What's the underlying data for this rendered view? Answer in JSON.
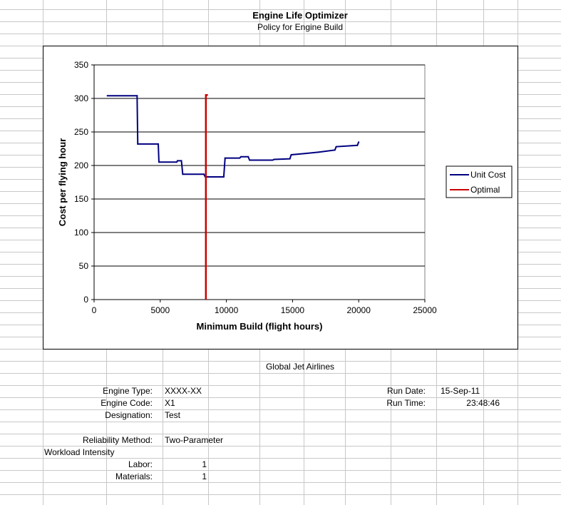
{
  "sheet": {
    "title": "Engine Life Optimizer",
    "subtitle": "Policy for Engine Build",
    "airline": "Global Jet Airlines",
    "fields": {
      "engine_type_label": "Engine Type:",
      "engine_type": "XXXX-XX",
      "engine_code_label": "Engine Code:",
      "engine_code": "X1",
      "designation_label": "Designation:",
      "designation": "Test",
      "reliability_label": "Reliability Method:",
      "reliability": "Two-Parameter",
      "workload_label": "Workload Intensity",
      "labor_label": "Labor:",
      "labor": "1",
      "materials_label": "Materials:",
      "materials": "1",
      "run_date_label": "Run Date:",
      "run_date": "15-Sep-11",
      "run_time_label": "Run Time:",
      "run_time": "23:48:46"
    }
  },
  "chart_data": {
    "type": "line",
    "title": "",
    "xlabel": "Minimum Build (flight hours)",
    "ylabel": "Cost per flying hour",
    "xlim": [
      0,
      25000
    ],
    "ylim": [
      0,
      350
    ],
    "xticks": [
      0,
      5000,
      10000,
      15000,
      20000,
      25000
    ],
    "yticks": [
      0,
      50,
      100,
      150,
      200,
      250,
      300,
      350
    ],
    "grid": "horizontal",
    "legend_position": "right",
    "series": [
      {
        "name": "Unit Cost",
        "color": "#000080",
        "x": [
          1000,
          3250,
          3300,
          4850,
          4900,
          6250,
          6300,
          6600,
          6700,
          8300,
          8400,
          9800,
          9900,
          11000,
          11100,
          11650,
          11750,
          13500,
          13600,
          14800,
          14900,
          16000,
          17000,
          18200,
          18300,
          19900,
          20000
        ],
        "y": [
          304,
          304,
          232,
          232,
          205,
          205,
          207,
          207,
          187,
          187,
          183,
          183,
          211,
          211,
          213,
          213,
          208,
          208,
          209,
          210,
          216,
          218,
          220,
          223,
          228,
          230,
          235
        ]
      },
      {
        "name": "Optimal",
        "color": "#cc0000",
        "x": [
          8450,
          8450,
          8600
        ],
        "y": [
          0,
          305,
          305
        ]
      }
    ]
  }
}
